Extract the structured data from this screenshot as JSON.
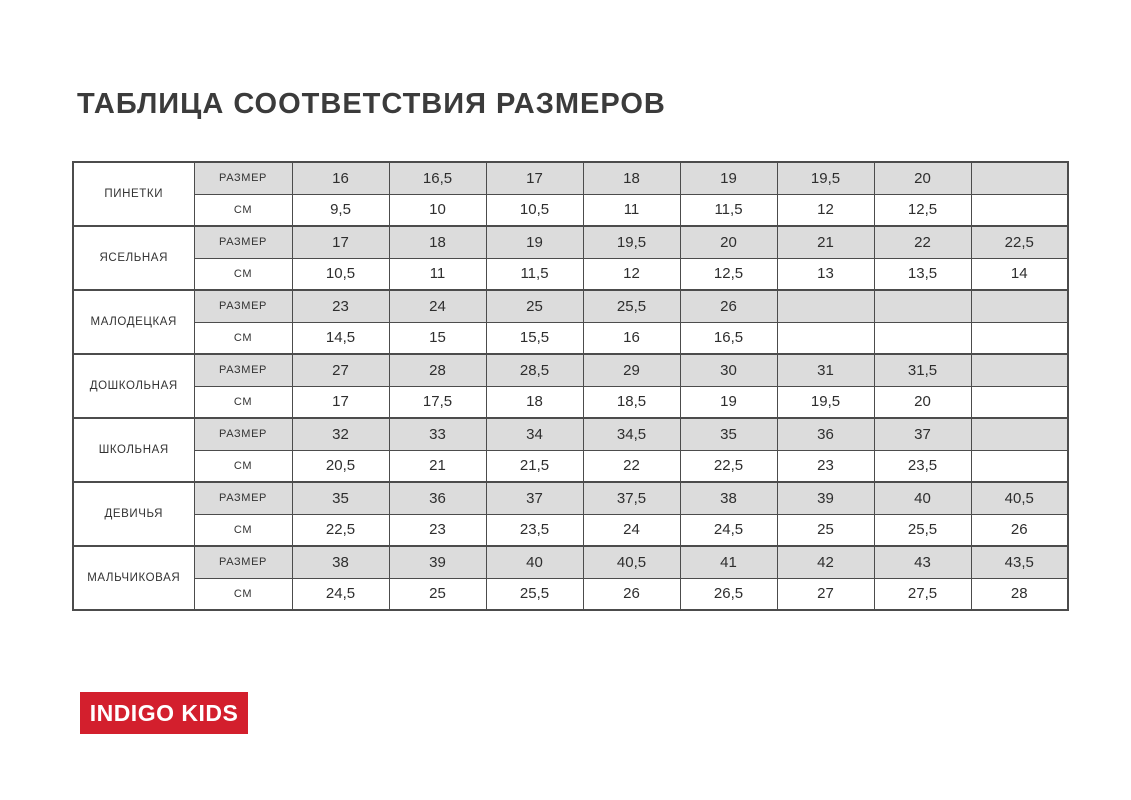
{
  "title": "ТАБЛИЦА СООТВЕТСТВИЯ РАЗМЕРОВ",
  "table": {
    "row_labels": {
      "size": "РАЗМЕР",
      "cm": "СМ"
    },
    "groups": [
      {
        "category": "ПИНЕТКИ",
        "sizes": [
          "16",
          "16,5",
          "17",
          "18",
          "19",
          "19,5",
          "20",
          ""
        ],
        "cm": [
          "9,5",
          "10",
          "10,5",
          "11",
          "11,5",
          "12",
          "12,5",
          ""
        ]
      },
      {
        "category": "ЯСЕЛЬНАЯ",
        "sizes": [
          "17",
          "18",
          "19",
          "19,5",
          "20",
          "21",
          "22",
          "22,5"
        ],
        "cm": [
          "10,5",
          "11",
          "11,5",
          "12",
          "12,5",
          "13",
          "13,5",
          "14"
        ]
      },
      {
        "category": "МАЛОДЕЦКАЯ",
        "sizes": [
          "23",
          "24",
          "25",
          "25,5",
          "26",
          "",
          "",
          ""
        ],
        "cm": [
          "14,5",
          "15",
          "15,5",
          "16",
          "16,5",
          "",
          "",
          ""
        ]
      },
      {
        "category": "ДОШКОЛЬНАЯ",
        "sizes": [
          "27",
          "28",
          "28,5",
          "29",
          "30",
          "31",
          "31,5",
          ""
        ],
        "cm": [
          "17",
          "17,5",
          "18",
          "18,5",
          "19",
          "19,5",
          "20",
          ""
        ]
      },
      {
        "category": "ШКОЛЬНАЯ",
        "sizes": [
          "32",
          "33",
          "34",
          "34,5",
          "35",
          "36",
          "37",
          ""
        ],
        "cm": [
          "20,5",
          "21",
          "21,5",
          "22",
          "22,5",
          "23",
          "23,5",
          ""
        ]
      },
      {
        "category": "ДЕВИЧЬЯ",
        "sizes": [
          "35",
          "36",
          "37",
          "37,5",
          "38",
          "39",
          "40",
          "40,5"
        ],
        "cm": [
          "22,5",
          "23",
          "23,5",
          "24",
          "24,5",
          "25",
          "25,5",
          "26"
        ]
      },
      {
        "category": "МАЛЬЧИКОВАЯ",
        "sizes": [
          "38",
          "39",
          "40",
          "40,5",
          "41",
          "42",
          "43",
          "43,5"
        ],
        "cm": [
          "24,5",
          "25",
          "25,5",
          "26",
          "26,5",
          "27",
          "27,5",
          "28"
        ]
      }
    ]
  },
  "logo": {
    "text": "INDIGO KIDS",
    "bg_color": "#d31f2d",
    "text_color": "#ffffff"
  },
  "colors": {
    "shaded_cell": "#dcdcdc",
    "border": "#4c4c4c",
    "title_text": "#3b3b3b"
  }
}
